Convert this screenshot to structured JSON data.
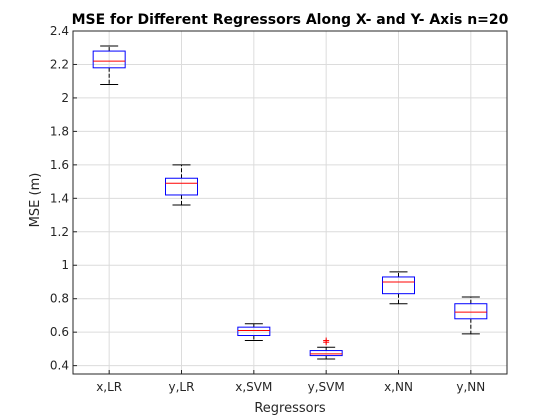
{
  "chart_data": {
    "type": "box",
    "title": "MSE for Different Regressors Along X- and Y- Axis n=20",
    "xlabel": "Regressors",
    "ylabel": "MSE (m)",
    "ylim": [
      0.35,
      2.4
    ],
    "yticks": [
      0.4,
      0.6,
      0.8,
      1,
      1.2,
      1.4,
      1.6,
      1.8,
      2,
      2.2,
      2.4
    ],
    "ytick_labels": [
      "0.4",
      "0.6",
      "0.8",
      "1",
      "1.2",
      "1.4",
      "1.6",
      "1.8",
      "2",
      "2.2",
      "2.4"
    ],
    "grid": true,
    "categories": [
      "x,LR",
      "y,LR",
      "x,SVM",
      "y,SVM",
      "x,NN",
      "y,NN"
    ],
    "boxes": [
      {
        "whisker_low": 2.08,
        "q1": 2.18,
        "median": 2.22,
        "q3": 2.28,
        "whisker_high": 2.31,
        "outliers": []
      },
      {
        "whisker_low": 1.36,
        "q1": 1.42,
        "median": 1.49,
        "q3": 1.52,
        "whisker_high": 1.6,
        "outliers": []
      },
      {
        "whisker_low": 0.55,
        "q1": 0.58,
        "median": 0.61,
        "q3": 0.63,
        "whisker_high": 0.65,
        "outliers": []
      },
      {
        "whisker_low": 0.44,
        "q1": 0.46,
        "median": 0.47,
        "q3": 0.49,
        "whisker_high": 0.51,
        "outliers": [
          0.54,
          0.55
        ]
      },
      {
        "whisker_low": 0.77,
        "q1": 0.83,
        "median": 0.9,
        "q3": 0.93,
        "whisker_high": 0.96,
        "outliers": []
      },
      {
        "whisker_low": 0.59,
        "q1": 0.68,
        "median": 0.72,
        "q3": 0.77,
        "whisker_high": 0.81,
        "outliers": []
      }
    ]
  }
}
